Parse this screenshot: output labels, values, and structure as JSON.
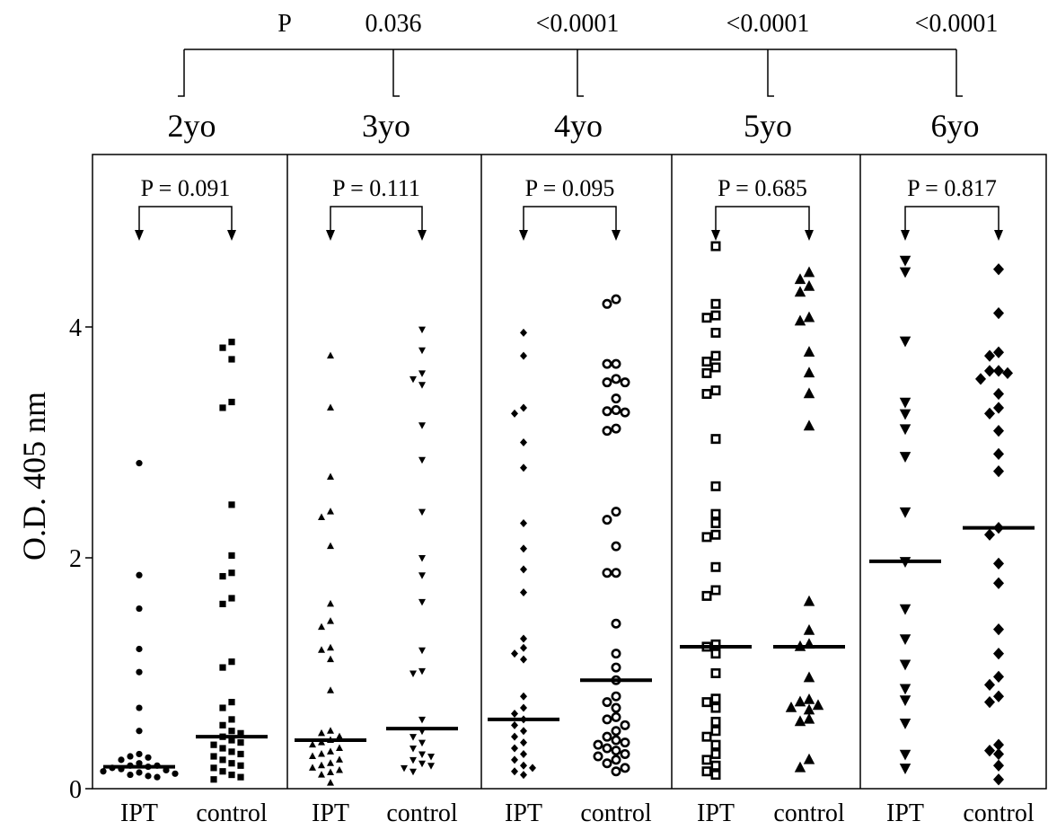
{
  "chart_data": {
    "type": "scatter",
    "title": "",
    "xlabel": "",
    "ylabel": "O.D. 405 nm",
    "ylim": [
      0,
      5.8
    ],
    "yticks": [
      0,
      2,
      4
    ],
    "ytick_labels": [
      "0",
      "2",
      "4"
    ],
    "grid": false,
    "trend_test": {
      "label": "P",
      "values": [
        "0.036",
        "<0.0001",
        "<0.0001",
        "<0.0001"
      ]
    },
    "panels": [
      {
        "name": "2yo",
        "p_label": "P = 0.091",
        "series": [
          {
            "name": "IPT",
            "marker": "circle",
            "median": 0.19,
            "values": [
              2.82,
              1.85,
              1.56,
              1.21,
              1.01,
              0.7,
              0.5,
              0.3,
              0.28,
              0.27,
              0.25,
              0.22,
              0.2,
              0.2,
              0.19,
              0.18,
              0.17,
              0.16,
              0.15,
              0.14,
              0.13,
              0.12,
              0.11,
              0.1
            ]
          },
          {
            "name": "control",
            "marker": "square",
            "median": 0.45,
            "values": [
              3.87,
              3.82,
              3.72,
              3.35,
              3.3,
              2.46,
              2.02,
              1.87,
              1.84,
              1.65,
              1.6,
              1.1,
              1.05,
              0.75,
              0.7,
              0.6,
              0.55,
              0.5,
              0.48,
              0.45,
              0.42,
              0.4,
              0.38,
              0.35,
              0.32,
              0.3,
              0.28,
              0.25,
              0.22,
              0.2,
              0.18,
              0.15,
              0.12,
              0.1,
              0.08
            ]
          }
        ]
      },
      {
        "name": "3yo",
        "p_label": "P = 0.111",
        "series": [
          {
            "name": "IPT",
            "marker": "triangle-up",
            "median": 0.42,
            "values": [
              3.75,
              3.3,
              2.7,
              2.4,
              2.35,
              2.1,
              1.6,
              1.45,
              1.4,
              1.22,
              1.2,
              1.12,
              0.85,
              0.5,
              0.48,
              0.45,
              0.42,
              0.4,
              0.38,
              0.35,
              0.32,
              0.3,
              0.28,
              0.25,
              0.22,
              0.2,
              0.18,
              0.16,
              0.14,
              0.12,
              0.05
            ]
          },
          {
            "name": "control",
            "marker": "triangle-down",
            "median": 0.52,
            "values": [
              3.98,
              3.8,
              3.6,
              3.55,
              3.5,
              3.15,
              2.85,
              2.4,
              2.0,
              1.85,
              1.62,
              1.2,
              1.02,
              1.0,
              0.6,
              0.5,
              0.45,
              0.4,
              0.35,
              0.3,
              0.28,
              0.25,
              0.22,
              0.2,
              0.18,
              0.15
            ]
          }
        ]
      },
      {
        "name": "4yo",
        "p_label": "P = 0.095",
        "series": [
          {
            "name": "IPT",
            "marker": "diamond",
            "median": 0.6,
            "values": [
              3.95,
              3.75,
              3.3,
              3.25,
              3.0,
              2.78,
              2.3,
              2.08,
              1.9,
              1.7,
              1.3,
              1.22,
              1.17,
              1.12,
              0.8,
              0.7,
              0.65,
              0.6,
              0.55,
              0.5,
              0.45,
              0.4,
              0.35,
              0.3,
              0.25,
              0.2,
              0.18,
              0.15,
              0.12
            ]
          },
          {
            "name": "control",
            "marker": "ring",
            "median": 0.94,
            "values": [
              4.24,
              4.2,
              3.68,
              3.68,
              3.55,
              3.52,
              3.52,
              3.38,
              3.28,
              3.26,
              3.27,
              3.12,
              3.1,
              2.4,
              2.33,
              2.1,
              1.87,
              1.87,
              1.43,
              1.17,
              1.05,
              0.94,
              0.8,
              0.75,
              0.7,
              0.62,
              0.6,
              0.55,
              0.5,
              0.45,
              0.42,
              0.4,
              0.38,
              0.35,
              0.33,
              0.3,
              0.28,
              0.25,
              0.22,
              0.18,
              0.15
            ]
          }
        ]
      },
      {
        "name": "5yo",
        "p_label": "P = 0.685",
        "series": [
          {
            "name": "IPT",
            "marker": "square-open",
            "median": 1.23,
            "values": [
              4.7,
              4.2,
              4.1,
              4.08,
              3.95,
              3.75,
              3.7,
              3.65,
              3.6,
              3.45,
              3.42,
              3.03,
              2.62,
              2.38,
              2.3,
              2.2,
              2.18,
              1.92,
              1.72,
              1.67,
              1.25,
              1.23,
              1.17,
              1.0,
              0.78,
              0.75,
              0.7,
              0.58,
              0.5,
              0.45,
              0.38,
              0.3,
              0.25,
              0.2,
              0.15,
              0.12
            ]
          },
          {
            "name": "control",
            "marker": "triangle-up-open",
            "median": 1.23,
            "values": [
              4.47,
              4.41,
              4.35,
              4.3,
              4.08,
              4.05,
              3.78,
              3.6,
              3.42,
              3.14,
              1.62,
              1.37,
              1.25,
              1.23,
              0.96,
              0.77,
              0.75,
              0.72,
              0.7,
              0.68,
              0.6,
              0.58,
              0.25,
              0.18
            ]
          }
        ]
      },
      {
        "name": "6yo",
        "p_label": "P = 0.817",
        "series": [
          {
            "name": "IPT",
            "marker": "triangle-down-open",
            "median": 1.97,
            "values": [
              4.58,
              4.48,
              3.88,
              3.35,
              3.25,
              3.12,
              2.88,
              2.4,
              1.97,
              1.56,
              1.3,
              1.08,
              0.87,
              0.77,
              0.57,
              0.3,
              0.18
            ]
          },
          {
            "name": "control",
            "marker": "diamond-open",
            "median": 2.26,
            "values": [
              4.5,
              4.12,
              3.78,
              3.75,
              3.62,
              3.62,
              3.6,
              3.55,
              3.42,
              3.3,
              3.25,
              3.1,
              2.9,
              2.75,
              2.26,
              2.2,
              1.95,
              1.78,
              1.38,
              1.17,
              0.97,
              0.9,
              0.8,
              0.75,
              0.38,
              0.33,
              0.3,
              0.2,
              0.08
            ]
          }
        ]
      }
    ]
  }
}
